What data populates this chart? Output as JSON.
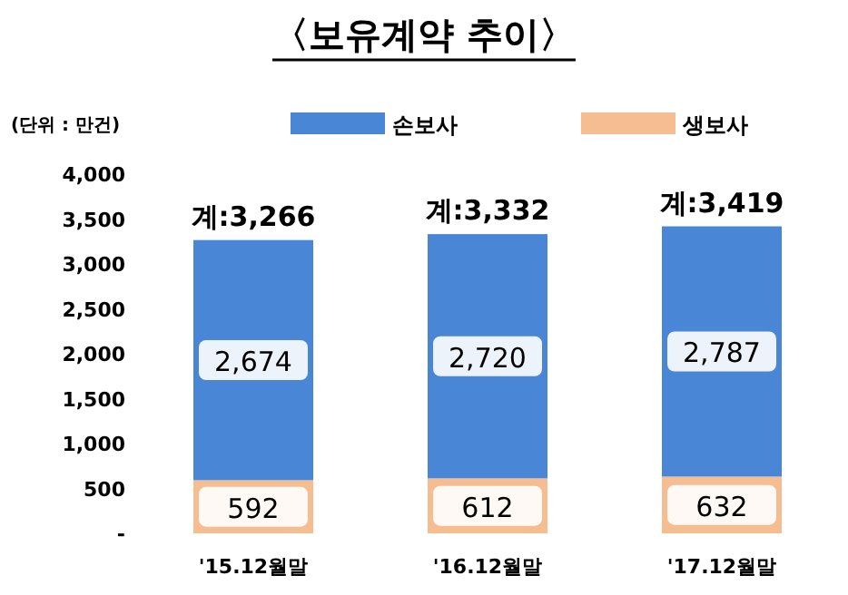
{
  "chart_data": {
    "type": "bar",
    "title": "〈보유계약 추이〉",
    "annotations": [
      "(단위 : 만건)"
    ],
    "categories": [
      "'15.12월말",
      "'16.12월말",
      "'17.12월말"
    ],
    "stacked": true,
    "legend": "top",
    "ylim": [
      0,
      4000
    ],
    "yticks": [
      {
        "value": 0,
        "label": "-"
      },
      500,
      {
        "value": 1000,
        "label": "1,000"
      },
      {
        "value": 1500,
        "label": "1,500"
      },
      {
        "value": 2000,
        "label": "2,000"
      },
      {
        "value": 2500,
        "label": "2,500"
      },
      {
        "value": 3000,
        "label": "3,000"
      },
      {
        "value": 3500,
        "label": "3,500"
      },
      {
        "value": 4000,
        "label": "4,000"
      }
    ],
    "series": [
      {
        "name": "생보사",
        "color": "#f6bd91",
        "values": [
          592,
          612,
          632
        ],
        "value_labels": [
          "592",
          "612",
          "632"
        ]
      },
      {
        "name": "손보사",
        "color": "#4a86d6",
        "values": [
          2674,
          2720,
          2787
        ],
        "value_labels": [
          "2,674",
          "2,720",
          "2,787"
        ]
      }
    ],
    "totals": [
      "계:3,266",
      "계:3,332",
      "계:3,419"
    ]
  }
}
